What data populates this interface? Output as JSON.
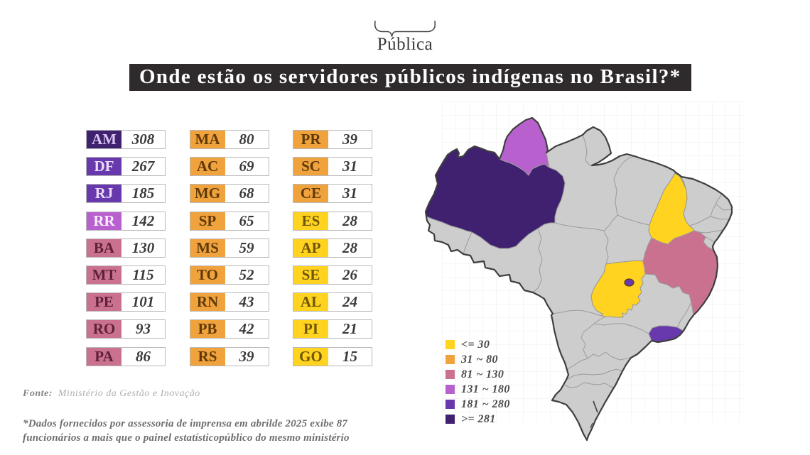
{
  "logo": {
    "text": "Pública"
  },
  "title": {
    "text": "Onde estão os servidores públicos indígenas no Brasil?*",
    "bg": "#2f2b2d",
    "color": "#ffffff"
  },
  "buckets": [
    {
      "id": "b1",
      "label": "<= 30",
      "color": "#ffd31f",
      "text_color": "#6e5607"
    },
    {
      "id": "b2",
      "label": "31 ~ 80",
      "color": "#f0a23d",
      "text_color": "#5f3a08"
    },
    {
      "id": "b3",
      "label": "81 ~ 130",
      "color": "#cb7190",
      "text_color": "#5e2138"
    },
    {
      "id": "b4",
      "label": "131 ~ 180",
      "color": "#b861ce",
      "text_color": "#faeeff"
    },
    {
      "id": "b5",
      "label": "181 ~ 280",
      "color": "#6839ac",
      "text_color": "#eadcf8"
    },
    {
      "id": "b6",
      "label": ">= 281",
      "color": "#40216f",
      "text_color": "#d9c3f0"
    }
  ],
  "table": {
    "columns": [
      [
        {
          "code": "AM",
          "value": "308",
          "bucket": "b6"
        },
        {
          "code": "DF",
          "value": "267",
          "bucket": "b5"
        },
        {
          "code": "RJ",
          "value": "185",
          "bucket": "b5"
        },
        {
          "code": "RR",
          "value": "142",
          "bucket": "b4"
        },
        {
          "code": "BA",
          "value": "130",
          "bucket": "b3"
        },
        {
          "code": "MT",
          "value": "115",
          "bucket": "b3"
        },
        {
          "code": "PE",
          "value": "101",
          "bucket": "b3"
        },
        {
          "code": "RO",
          "value": "93",
          "bucket": "b3"
        },
        {
          "code": "PA",
          "value": "86",
          "bucket": "b3"
        }
      ],
      [
        {
          "code": "MA",
          "value": "80",
          "bucket": "b2"
        },
        {
          "code": "AC",
          "value": "69",
          "bucket": "b2"
        },
        {
          "code": "MG",
          "value": "68",
          "bucket": "b2"
        },
        {
          "code": "SP",
          "value": "65",
          "bucket": "b2"
        },
        {
          "code": "MS",
          "value": "59",
          "bucket": "b2"
        },
        {
          "code": "TO",
          "value": "52",
          "bucket": "b2"
        },
        {
          "code": "RN",
          "value": "43",
          "bucket": "b2"
        },
        {
          "code": "PB",
          "value": "42",
          "bucket": "b2"
        },
        {
          "code": "RS",
          "value": "39",
          "bucket": "b2"
        }
      ],
      [
        {
          "code": "PR",
          "value": "39",
          "bucket": "b2"
        },
        {
          "code": "SC",
          "value": "31",
          "bucket": "b2"
        },
        {
          "code": "CE",
          "value": "31",
          "bucket": "b2"
        },
        {
          "code": "ES",
          "value": "28",
          "bucket": "b1"
        },
        {
          "code": "AP",
          "value": "28",
          "bucket": "b1"
        },
        {
          "code": "SE",
          "value": "26",
          "bucket": "b1"
        },
        {
          "code": "AL",
          "value": "24",
          "bucket": "b1"
        },
        {
          "code": "PI",
          "value": "21",
          "bucket": "b1"
        },
        {
          "code": "GO",
          "value": "15",
          "bucket": "b1"
        }
      ]
    ]
  },
  "map": {
    "land_color": "#cdcdcd",
    "border_color": "#9b9b9b",
    "outline_color": "#3f3f3f",
    "grid_color": "#ededed",
    "highlighted": [
      {
        "state": "AM",
        "bucket": "b6"
      },
      {
        "state": "RR",
        "bucket": "b4"
      },
      {
        "state": "PI",
        "bucket": "b1"
      },
      {
        "state": "BA",
        "bucket": "b3"
      },
      {
        "state": "GO",
        "bucket": "b1"
      },
      {
        "state": "RJ",
        "bucket": "b5"
      },
      {
        "state": "DF",
        "bucket": "b5"
      }
    ]
  },
  "source": {
    "label": "Fonte:",
    "text": "Ministério da Gestão e Inovação"
  },
  "footnote": {
    "text": "*Dados fornecidos por assessoria de imprensa em abrilde 2025 exibe 87\nfuncionários a mais que o painel estatísticopúblico do mesmo ministério"
  },
  "chart_data": {
    "type": "table",
    "title": "Onde estão os servidores públicos indígenas no Brasil?*",
    "categories": [
      "AM",
      "DF",
      "RJ",
      "RR",
      "BA",
      "MT",
      "PE",
      "RO",
      "PA",
      "MA",
      "AC",
      "MG",
      "SP",
      "MS",
      "TO",
      "RN",
      "PB",
      "RS",
      "PR",
      "SC",
      "CE",
      "ES",
      "AP",
      "SE",
      "AL",
      "PI",
      "GO"
    ],
    "values": [
      308,
      267,
      185,
      142,
      130,
      115,
      101,
      93,
      86,
      80,
      69,
      68,
      65,
      59,
      52,
      43,
      42,
      39,
      39,
      31,
      31,
      28,
      28,
      26,
      24,
      21,
      15
    ],
    "legend": [
      "<= 30",
      "31 ~ 80",
      "81 ~ 130",
      "131 ~ 180",
      "181 ~ 280",
      ">= 281"
    ],
    "legend_position": "bottom-left of map",
    "map_highlighted_states": [
      "AM",
      "RR",
      "PI",
      "BA",
      "GO",
      "RJ",
      "DF"
    ],
    "source": "Fonte: Ministério da Gestão e Inovação",
    "note": "*Dados fornecidos por assessoria de imprensa em abrilde 2025 exibe 87 funcionários a mais que o painel estatísticopúblico do mesmo ministério"
  }
}
